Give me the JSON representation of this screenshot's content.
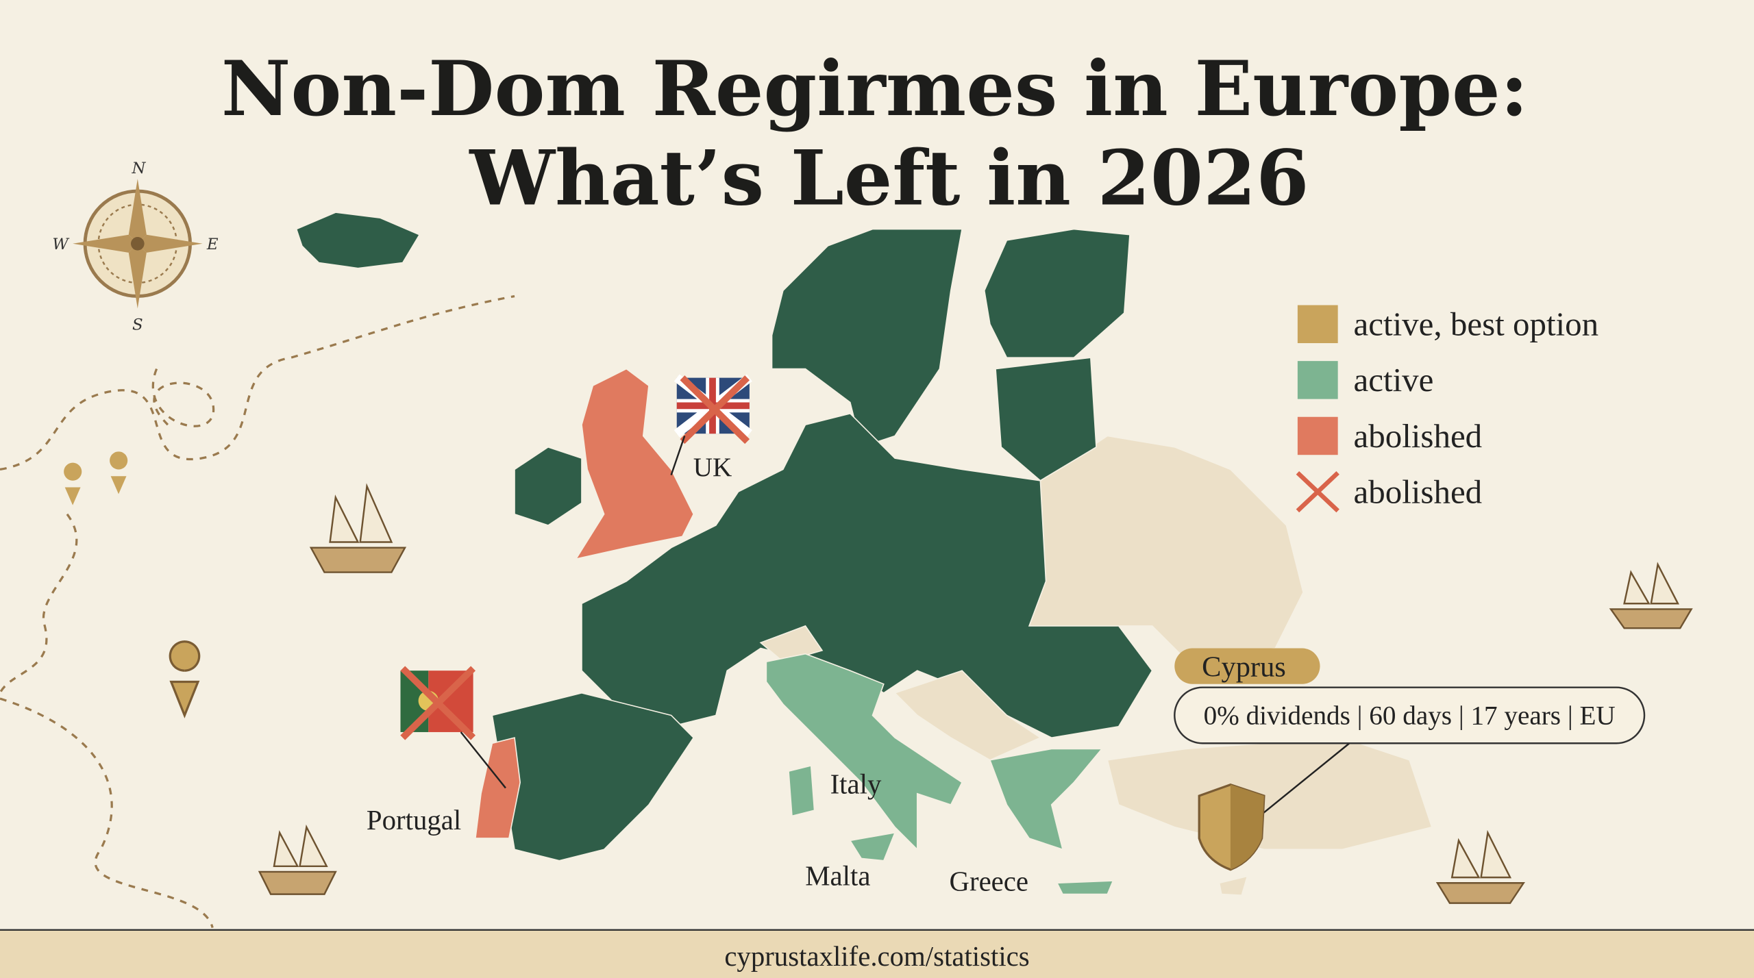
{
  "title": {
    "line1": "Non-Dom Regirmes in Europe:",
    "line2": "What’s Left in 2026"
  },
  "compass": {
    "north": "N",
    "west": "W",
    "east": "E",
    "south": "S"
  },
  "legend": [
    {
      "label": "active, best option",
      "color": "#c9a45c"
    },
    {
      "label": "active",
      "color": "#7db491"
    },
    {
      "label": "abolished",
      "color": "#e07a5f"
    },
    {
      "label": "abolished",
      "color": "#d9644a"
    }
  ],
  "labels": {
    "uk": "UK",
    "portugal": "Portugal",
    "italy": "Italy",
    "malta": "Malta",
    "greece": "Greece"
  },
  "callout": {
    "name": "Cyprus",
    "details": "0% dividends | 60 days | 17 years | EU"
  },
  "footer": {
    "url": "cyprustaxlife.com/statistics"
  }
}
